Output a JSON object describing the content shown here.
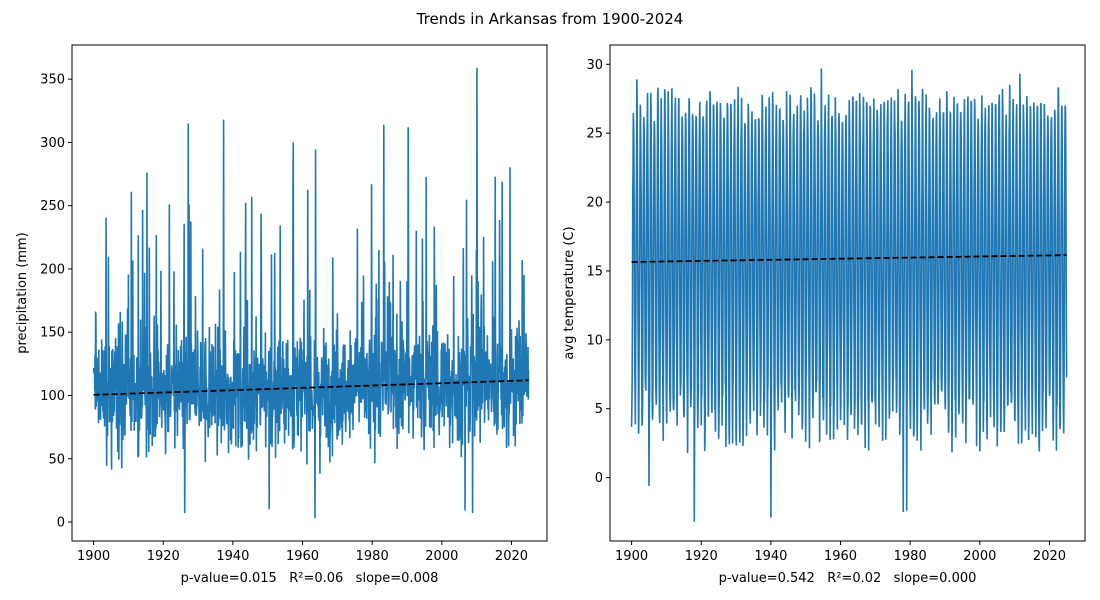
{
  "figure": {
    "title": "Trends in Arkansas from 1900-2024",
    "line_color": "#1f77b4",
    "trend_color": "#000000"
  },
  "chart_data": [
    {
      "type": "line",
      "title": "",
      "xlabel": "p-value=0.015   R²=0.06   slope=0.008",
      "ylabel": "precipitation (mm)",
      "xlim": [
        1893.8,
        2030.2
      ],
      "ylim": [
        -15,
        377
      ],
      "x_ticks": [
        1900,
        1920,
        1940,
        1960,
        1980,
        2000,
        2020
      ],
      "y_ticks": [
        0,
        50,
        100,
        150,
        200,
        250,
        300,
        350
      ],
      "x_tick_labels": [
        "1900",
        "1920",
        "1940",
        "1960",
        "1980",
        "2000",
        "2020"
      ],
      "y_tick_labels": [
        "0",
        "50",
        "100",
        "150",
        "200",
        "250",
        "300",
        "350"
      ],
      "grid": false,
      "series": [
        {
          "kind": "monthly",
          "x_start": 1900,
          "x_end": 2024.9,
          "base_mean": 101,
          "mean_slope_per_year": 0.09,
          "amplitude": 55,
          "min": 3,
          "max": 359,
          "peaks": [
            {
              "x": 1900.7,
              "y": 165
            },
            {
              "x": 1915.3,
              "y": 276
            },
            {
              "x": 1910.8,
              "y": 261
            },
            {
              "x": 1927.2,
              "y": 315
            },
            {
              "x": 1937.3,
              "y": 318
            },
            {
              "x": 1945.4,
              "y": 257
            },
            {
              "x": 1957.3,
              "y": 300
            },
            {
              "x": 1983.3,
              "y": 314
            },
            {
              "x": 1990.3,
              "y": 312
            },
            {
              "x": 2010.1,
              "y": 359
            },
            {
              "x": 2015.3,
              "y": 273
            },
            {
              "x": 2017.3,
              "y": 269
            },
            {
              "x": 1926.2,
              "y": 7
            },
            {
              "x": 1963.6,
              "y": 3
            },
            {
              "x": 1950.4,
              "y": 10
            },
            {
              "x": 2006.7,
              "y": 9
            },
            {
              "x": 2008.8,
              "y": 7
            }
          ]
        }
      ],
      "trend": {
        "x": [
          1900,
          2024.9
        ],
        "y": [
          100.5,
          112.0
        ]
      }
    },
    {
      "type": "line",
      "title": "",
      "xlabel": "p-value=0.542   R²=0.02   slope=0.000",
      "ylabel": "avg temperature (C)",
      "xlim": [
        1893.8,
        2030.2
      ],
      "ylim": [
        -4.6,
        31.4
      ],
      "x_ticks": [
        1900,
        1920,
        1940,
        1960,
        1980,
        2000,
        2020
      ],
      "y_ticks": [
        0,
        5,
        10,
        15,
        20,
        25,
        30
      ],
      "x_tick_labels": [
        "1900",
        "1920",
        "1940",
        "1960",
        "1980",
        "2000",
        "2020"
      ],
      "y_tick_labels": [
        "0",
        "5",
        "10",
        "15",
        "20",
        "25",
        "30"
      ],
      "grid": false,
      "series": [
        {
          "kind": "seasonal",
          "x_start": 1900,
          "x_end": 2024.9,
          "mean": 15.9,
          "summer_peak_typical": 27.2,
          "winter_low_typical": 4.0,
          "min": -3.2,
          "max": 29.7,
          "extremes": [
            {
              "x": 1918.0,
              "y": -3.2
            },
            {
              "x": 1940.0,
              "y": -2.9
            },
            {
              "x": 1978.0,
              "y": -2.5
            },
            {
              "x": 1979.0,
              "y": -2.4
            },
            {
              "x": 1905.0,
              "y": -0.6
            },
            {
              "x": 1954.5,
              "y": 29.7
            },
            {
              "x": 1980.5,
              "y": 29.6
            },
            {
              "x": 2011.5,
              "y": 29.3
            },
            {
              "x": 1901.5,
              "y": 28.9
            }
          ]
        }
      ],
      "trend": {
        "x": [
          1900,
          2024.9
        ],
        "y": [
          15.65,
          16.15
        ]
      }
    }
  ]
}
